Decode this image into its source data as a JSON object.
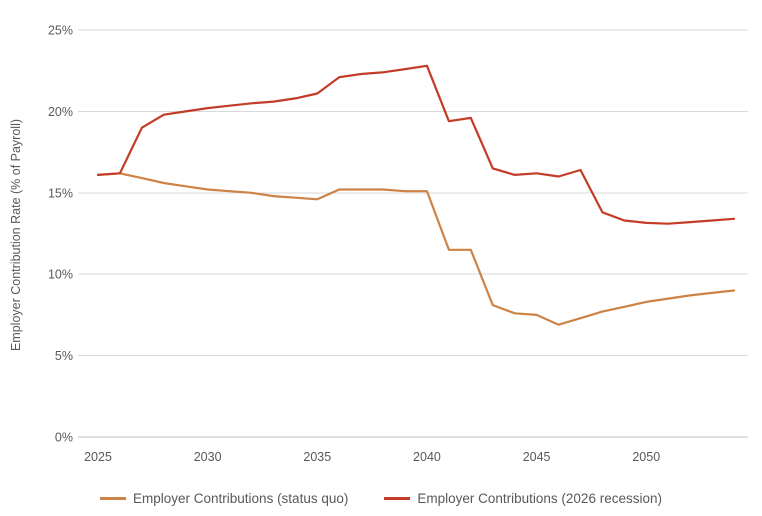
{
  "chart_data": {
    "type": "line",
    "x": [
      2025,
      2026,
      2027,
      2028,
      2029,
      2030,
      2031,
      2032,
      2033,
      2034,
      2035,
      2036,
      2037,
      2038,
      2039,
      2040,
      2041,
      2042,
      2043,
      2044,
      2045,
      2046,
      2047,
      2048,
      2049,
      2050,
      2051,
      2052,
      2053,
      2054
    ],
    "series": [
      {
        "key": "status-quo",
        "name": "Employer Contributions (status quo)",
        "color": "#CD8246",
        "values": [
          16.1,
          16.2,
          15.9,
          15.6,
          15.4,
          15.2,
          15.1,
          15.0,
          14.8,
          14.7,
          14.6,
          15.2,
          15.2,
          15.2,
          15.1,
          15.1,
          11.5,
          11.5,
          8.1,
          7.6,
          7.5,
          6.9,
          7.3,
          7.7,
          8.0,
          8.3,
          8.5,
          8.7,
          8.85,
          9.0
        ]
      },
      {
        "key": "2026-recession",
        "name": "Employer Contributions (2026 recession)",
        "color": "#C33C28",
        "values": [
          16.1,
          16.2,
          19.0,
          19.8,
          20.0,
          20.2,
          20.35,
          20.5,
          20.6,
          20.8,
          21.1,
          22.1,
          22.3,
          22.4,
          22.6,
          22.8,
          19.4,
          19.6,
          16.5,
          16.1,
          16.2,
          16.0,
          16.4,
          13.8,
          13.3,
          13.15,
          13.1,
          13.2,
          13.3,
          13.4
        ]
      }
    ],
    "title": "",
    "xlabel": "",
    "ylabel": "Employer Contribution Rate (% of Payroll)",
    "ylim": [
      0,
      25
    ],
    "ytick_values": [
      0,
      5,
      10,
      15,
      20,
      25
    ],
    "ytick_labels": [
      "0%",
      "5%",
      "10%",
      "15%",
      "20%",
      "25%"
    ],
    "xtick_values": [
      2025,
      2030,
      2035,
      2040,
      2045,
      2050
    ],
    "xtick_labels": [
      "2025",
      "2030",
      "2035",
      "2040",
      "2045",
      "2050"
    ],
    "grid": true,
    "legend_position": "bottom",
    "axis_color": "#bfbfbf",
    "gridline_color": "#d9d9d9",
    "tick_label_color": "#595959"
  }
}
